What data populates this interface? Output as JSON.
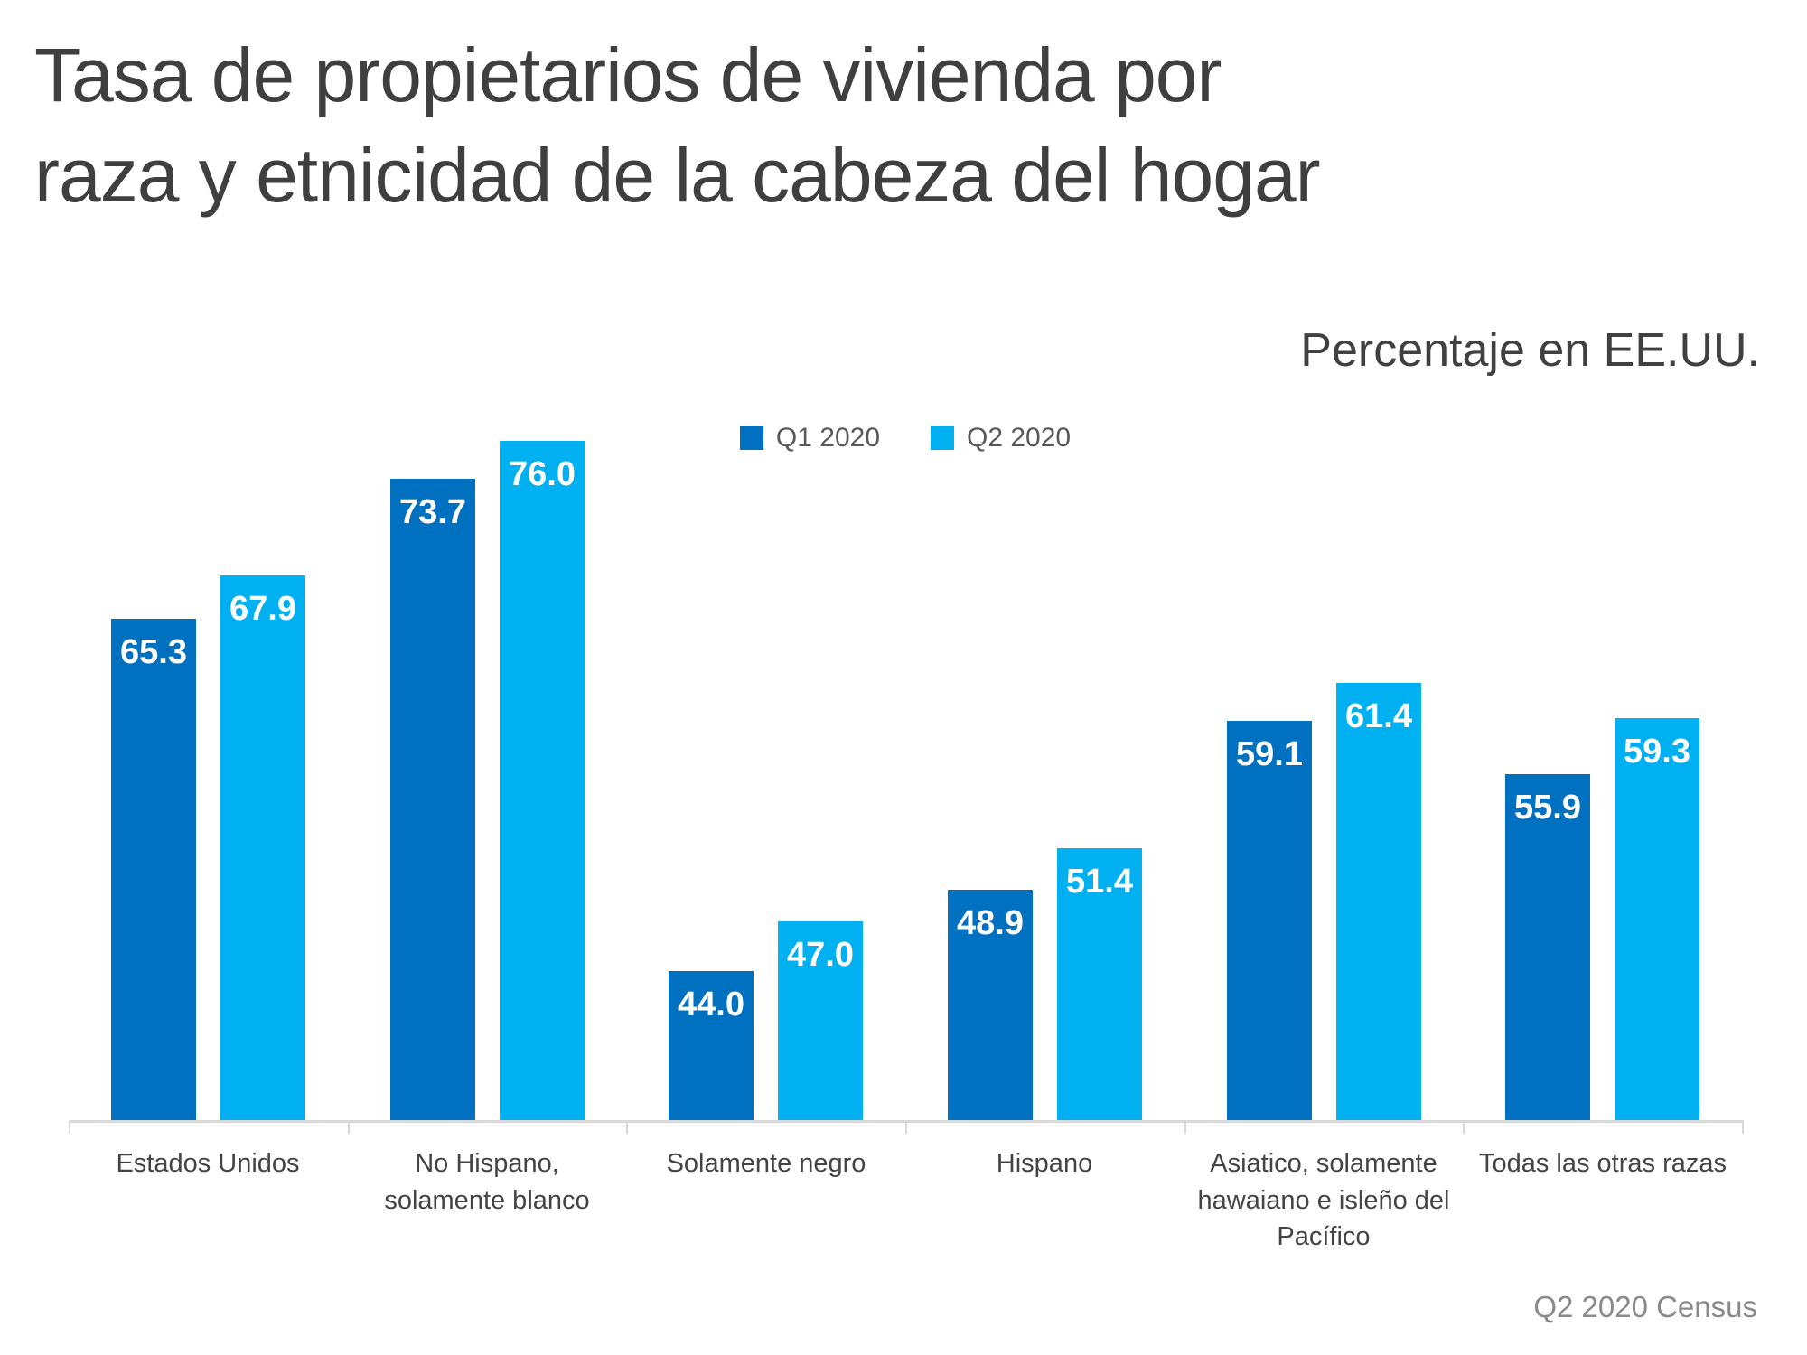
{
  "header": {
    "title": "Tasa de propietarios de vivienda por\nraza y etnicidad de la cabeza del hogar",
    "subtitle": "Percentaje en EE.UU."
  },
  "footer": {
    "source": "Q2 2020 Census"
  },
  "colors": {
    "q1_bar": "#0070C0",
    "q2_bar": "#00B0F0",
    "title_text": "#3f3f3f",
    "axis_line": "#d9d9d9",
    "value_label_text": "#ffffff"
  },
  "chart_data": {
    "type": "bar",
    "title": "Tasa de propietarios de vivienda por raza y etnicidad de la cabeza del hogar",
    "subtitle": "Percentaje en EE.UU.",
    "categories": [
      "Estados Unidos",
      "No Hispano,\nsolamente blanco",
      "Solamente negro",
      "Hispano",
      "Asiatico, solamente\nhawaiano e isleño del\nPacífico",
      "Todas las otras razas"
    ],
    "series": [
      {
        "name": "Q1 2020",
        "color": "#0070C0",
        "values": [
          65.3,
          73.7,
          44.0,
          48.9,
          59.1,
          55.9
        ]
      },
      {
        "name": "Q2 2020",
        "color": "#00B0F0",
        "values": [
          67.9,
          76.0,
          47.0,
          51.4,
          61.4,
          59.3
        ]
      }
    ],
    "xlabel": "",
    "ylabel": "",
    "ylim": [
      35,
      77
    ],
    "grid": false,
    "legend_position": "top-center",
    "value_labels": "inside-top, one decimal",
    "source": "Q2 2020 Census"
  }
}
